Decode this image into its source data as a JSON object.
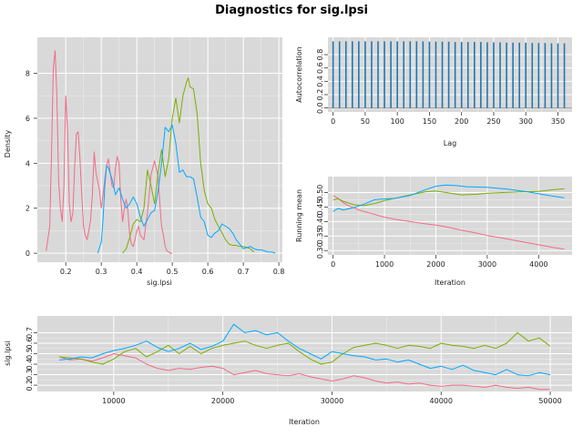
{
  "title": "Diagnostics for sig.lpsi",
  "colors": {
    "chain1": "#f8766d",
    "chain2": "#7cae00",
    "chain3": "#00bfc4",
    "acf": "#1f77b4"
  },
  "chart_data": [
    {
      "id": "density",
      "type": "line",
      "xlabel": "sig.lpsi",
      "ylabel": "Density",
      "xlim": [
        0.12,
        0.81
      ],
      "ylim": [
        -0.4,
        9.6
      ],
      "xticks": [
        0.2,
        0.3,
        0.4,
        0.5,
        0.6,
        0.7,
        0.8
      ],
      "yticks": [
        0,
        2,
        4,
        6,
        8
      ],
      "series": [
        {
          "color": "#f36b87",
          "x": [
            0.145,
            0.155,
            0.16,
            0.165,
            0.17,
            0.175,
            0.18,
            0.185,
            0.19,
            0.195,
            0.2,
            0.205,
            0.21,
            0.215,
            0.22,
            0.225,
            0.23,
            0.235,
            0.24,
            0.245,
            0.25,
            0.255,
            0.26,
            0.265,
            0.27,
            0.275,
            0.28,
            0.285,
            0.29,
            0.295,
            0.3,
            0.305,
            0.31,
            0.315,
            0.32,
            0.325,
            0.33,
            0.335,
            0.34,
            0.345,
            0.35,
            0.355,
            0.36,
            0.365,
            0.37,
            0.375,
            0.38,
            0.385,
            0.39,
            0.395,
            0.4,
            0.405,
            0.41,
            0.42,
            0.43,
            0.44,
            0.45,
            0.46,
            0.465,
            0.47,
            0.475,
            0.48,
            0.485,
            0.49,
            0.495,
            0.5
          ],
          "y": [
            0.1,
            1.2,
            4.5,
            8.2,
            9.0,
            7.0,
            3.2,
            2.0,
            1.4,
            3.0,
            7.0,
            5.5,
            2.2,
            1.4,
            1.8,
            3.8,
            5.3,
            5.4,
            4.2,
            2.6,
            1.2,
            0.8,
            0.6,
            1.0,
            1.5,
            2.6,
            4.5,
            3.6,
            3.2,
            2.8,
            2.0,
            2.6,
            3.3,
            3.9,
            4.2,
            3.6,
            3.0,
            2.9,
            3.8,
            4.3,
            4.0,
            2.4,
            1.4,
            2.0,
            2.4,
            1.9,
            0.8,
            0.4,
            0.3,
            0.6,
            1.0,
            1.2,
            0.8,
            0.6,
            1.8,
            3.5,
            4.1,
            3.4,
            2.2,
            1.2,
            0.8,
            0.3,
            0.1,
            0.05,
            0.0,
            0.0
          ]
        },
        {
          "color": "#7cae00",
          "x": [
            0.36,
            0.37,
            0.38,
            0.39,
            0.4,
            0.41,
            0.42,
            0.43,
            0.44,
            0.45,
            0.46,
            0.47,
            0.48,
            0.49,
            0.5,
            0.51,
            0.52,
            0.53,
            0.54,
            0.545,
            0.55,
            0.56,
            0.57,
            0.58,
            0.59,
            0.6,
            0.61,
            0.62,
            0.63,
            0.64,
            0.65,
            0.66,
            0.67,
            0.68,
            0.69,
            0.7,
            0.71,
            0.72,
            0.73
          ],
          "y": [
            0.0,
            0.2,
            0.7,
            1.3,
            1.5,
            1.4,
            2.0,
            3.7,
            3.0,
            2.2,
            3.6,
            4.6,
            3.4,
            4.2,
            6.0,
            6.9,
            5.8,
            7.0,
            7.6,
            7.8,
            7.4,
            7.3,
            6.2,
            4.0,
            2.8,
            2.2,
            2.0,
            1.5,
            1.2,
            0.9,
            0.6,
            0.4,
            0.35,
            0.35,
            0.3,
            0.3,
            0.25,
            0.2,
            0.05
          ]
        },
        {
          "color": "#00a9ff",
          "x": [
            0.29,
            0.3,
            0.305,
            0.31,
            0.315,
            0.32,
            0.33,
            0.34,
            0.35,
            0.36,
            0.37,
            0.38,
            0.39,
            0.4,
            0.41,
            0.42,
            0.43,
            0.44,
            0.45,
            0.46,
            0.47,
            0.48,
            0.49,
            0.5,
            0.51,
            0.52,
            0.53,
            0.54,
            0.55,
            0.56,
            0.57,
            0.58,
            0.59,
            0.6,
            0.61,
            0.62,
            0.63,
            0.64,
            0.65,
            0.66,
            0.67,
            0.68,
            0.69,
            0.7,
            0.71,
            0.72,
            0.73,
            0.74,
            0.75,
            0.76,
            0.77,
            0.78,
            0.79
          ],
          "y": [
            0.0,
            0.5,
            1.5,
            3.0,
            3.9,
            3.8,
            3.3,
            2.6,
            2.9,
            2.4,
            2.0,
            2.2,
            2.5,
            2.2,
            1.6,
            1.2,
            1.5,
            1.8,
            1.9,
            2.8,
            4.0,
            5.6,
            5.4,
            5.7,
            4.9,
            3.6,
            3.7,
            3.4,
            3.4,
            3.3,
            2.5,
            1.6,
            1.4,
            0.8,
            0.7,
            0.9,
            1.0,
            1.3,
            1.2,
            1.1,
            0.9,
            0.6,
            0.4,
            0.2,
            0.25,
            0.3,
            0.2,
            0.15,
            0.15,
            0.1,
            0.05,
            0.05,
            0.0
          ]
        }
      ]
    },
    {
      "id": "autocorrelation",
      "type": "bar",
      "xlabel": "Lag",
      "ylabel": "Autocorrelation",
      "xlim": [
        -8,
        372
      ],
      "ylim": [
        -0.06,
        1.06
      ],
      "xticks": [
        0,
        50,
        100,
        150,
        200,
        250,
        300,
        350
      ],
      "yticks": [
        0.0,
        0.2,
        0.4,
        0.6,
        0.8
      ],
      "lags": [
        0,
        10,
        20,
        30,
        40,
        50,
        60,
        70,
        80,
        90,
        100,
        110,
        120,
        130,
        140,
        150,
        160,
        170,
        180,
        190,
        200,
        210,
        220,
        230,
        240,
        250,
        260,
        270,
        280,
        290,
        300,
        310,
        320,
        330,
        340,
        350,
        360
      ],
      "values": [
        1.0,
        1.0,
        1.0,
        1.0,
        1.0,
        1.0,
        1.0,
        1.0,
        1.0,
        1.0,
        1.0,
        1.0,
        1.0,
        1.0,
        1.0,
        0.995,
        0.995,
        0.995,
        0.995,
        0.99,
        0.99,
        0.99,
        0.99,
        0.99,
        0.985,
        0.985,
        0.985,
        0.98,
        0.98,
        0.98,
        0.98,
        0.975,
        0.975,
        0.975,
        0.97,
        0.97,
        0.97
      ]
    },
    {
      "id": "running_mean",
      "type": "line",
      "xlabel": "Iteration",
      "ylabel": "Running mean",
      "xlim": [
        -100,
        4650
      ],
      "ylim": [
        0.285,
        0.555
      ],
      "xticks": [
        0,
        1000,
        2000,
        3000,
        4000
      ],
      "yticks": [
        0.3,
        0.35,
        0.4,
        0.45,
        0.5
      ],
      "series": [
        {
          "color": "#f36b87",
          "x": [
            0,
            100,
            200,
            300,
            500,
            700,
            1000,
            1200,
            1500,
            1800,
            2000,
            2200,
            2500,
            2800,
            3000,
            3300,
            3600,
            4000,
            4300,
            4500
          ],
          "y": [
            0.49,
            0.48,
            0.465,
            0.455,
            0.44,
            0.43,
            0.415,
            0.408,
            0.4,
            0.392,
            0.388,
            0.382,
            0.37,
            0.36,
            0.352,
            0.343,
            0.333,
            0.32,
            0.31,
            0.305
          ]
        },
        {
          "color": "#7cae00",
          "x": [
            0,
            100,
            200,
            400,
            600,
            800,
            1000,
            1200,
            1500,
            1800,
            2000,
            2200,
            2500,
            2800,
            3000,
            3300,
            3600,
            4000,
            4300,
            4500
          ],
          "y": [
            0.475,
            0.478,
            0.47,
            0.458,
            0.455,
            0.462,
            0.472,
            0.48,
            0.492,
            0.503,
            0.505,
            0.5,
            0.492,
            0.494,
            0.498,
            0.5,
            0.502,
            0.504,
            0.51,
            0.513
          ]
        },
        {
          "color": "#00a9ff",
          "x": [
            0,
            50,
            100,
            200,
            400,
            600,
            800,
            1000,
            1200,
            1500,
            1800,
            2000,
            2200,
            2400,
            2600,
            3000,
            3400,
            3800,
            4200,
            4500
          ],
          "y": [
            0.435,
            0.44,
            0.445,
            0.44,
            0.448,
            0.46,
            0.475,
            0.478,
            0.48,
            0.49,
            0.51,
            0.522,
            0.526,
            0.524,
            0.52,
            0.518,
            0.512,
            0.502,
            0.49,
            0.482
          ]
        }
      ]
    },
    {
      "id": "trace",
      "type": "line",
      "xlabel": "Iteration",
      "ylabel": "sig.lpsi",
      "xlim": [
        3000,
        52000
      ],
      "ylim": [
        0.14,
        0.86
      ],
      "xticks": [
        10000,
        20000,
        30000,
        40000,
        50000
      ],
      "yticks": [
        0.2,
        0.3,
        0.4,
        0.5,
        0.6,
        0.7
      ],
      "series": [
        {
          "color": "#f36b87",
          "x": [
            5000,
            6000,
            7000,
            8000,
            9000,
            10000,
            11000,
            12000,
            13000,
            14000,
            15000,
            16000,
            17000,
            18000,
            19000,
            20000,
            21000,
            22000,
            23000,
            24000,
            25000,
            26000,
            27000,
            28000,
            29000,
            30000,
            31000,
            32000,
            33000,
            34000,
            35000,
            36000,
            37000,
            38000,
            39000,
            40000,
            41000,
            42000,
            43000,
            44000,
            45000,
            46000,
            47000,
            48000,
            49000,
            50000
          ],
          "y": [
            0.47,
            0.44,
            0.45,
            0.43,
            0.46,
            0.5,
            0.48,
            0.46,
            0.4,
            0.36,
            0.34,
            0.36,
            0.35,
            0.37,
            0.38,
            0.36,
            0.3,
            0.32,
            0.34,
            0.31,
            0.3,
            0.29,
            0.31,
            0.28,
            0.26,
            0.24,
            0.26,
            0.29,
            0.27,
            0.24,
            0.22,
            0.23,
            0.21,
            0.22,
            0.2,
            0.19,
            0.2,
            0.2,
            0.19,
            0.18,
            0.2,
            0.18,
            0.17,
            0.18,
            0.16,
            0.16
          ]
        },
        {
          "color": "#7cae00",
          "x": [
            5000,
            6000,
            7000,
            8000,
            9000,
            10000,
            11000,
            12000,
            13000,
            14000,
            15000,
            16000,
            17000,
            18000,
            19000,
            20000,
            21000,
            22000,
            23000,
            24000,
            25000,
            26000,
            27000,
            28000,
            29000,
            30000,
            31000,
            32000,
            33000,
            34000,
            35000,
            36000,
            37000,
            38000,
            39000,
            40000,
            41000,
            42000,
            43000,
            44000,
            45000,
            46000,
            47000,
            48000,
            49000,
            50000
          ],
          "y": [
            0.47,
            0.46,
            0.45,
            0.42,
            0.4,
            0.45,
            0.52,
            0.55,
            0.47,
            0.52,
            0.58,
            0.5,
            0.57,
            0.5,
            0.55,
            0.58,
            0.6,
            0.62,
            0.58,
            0.55,
            0.58,
            0.6,
            0.52,
            0.45,
            0.4,
            0.42,
            0.5,
            0.56,
            0.58,
            0.6,
            0.58,
            0.55,
            0.58,
            0.57,
            0.55,
            0.6,
            0.58,
            0.57,
            0.55,
            0.58,
            0.55,
            0.6,
            0.7,
            0.62,
            0.65,
            0.57
          ]
        },
        {
          "color": "#00a9ff",
          "x": [
            5000,
            6000,
            7000,
            8000,
            9000,
            10000,
            11000,
            12000,
            13000,
            14000,
            15000,
            16000,
            17000,
            18000,
            19000,
            20000,
            21000,
            22000,
            23000,
            24000,
            25000,
            26000,
            27000,
            28000,
            29000,
            30000,
            31000,
            32000,
            33000,
            34000,
            35000,
            36000,
            37000,
            38000,
            39000,
            40000,
            41000,
            42000,
            43000,
            44000,
            45000,
            46000,
            47000,
            48000,
            49000,
            50000
          ],
          "y": [
            0.44,
            0.45,
            0.47,
            0.46,
            0.5,
            0.53,
            0.55,
            0.58,
            0.62,
            0.56,
            0.52,
            0.55,
            0.6,
            0.54,
            0.57,
            0.62,
            0.78,
            0.7,
            0.72,
            0.68,
            0.7,
            0.62,
            0.55,
            0.5,
            0.45,
            0.52,
            0.5,
            0.48,
            0.47,
            0.44,
            0.45,
            0.42,
            0.44,
            0.4,
            0.36,
            0.38,
            0.35,
            0.39,
            0.34,
            0.32,
            0.3,
            0.35,
            0.3,
            0.29,
            0.32,
            0.3
          ]
        }
      ]
    }
  ]
}
